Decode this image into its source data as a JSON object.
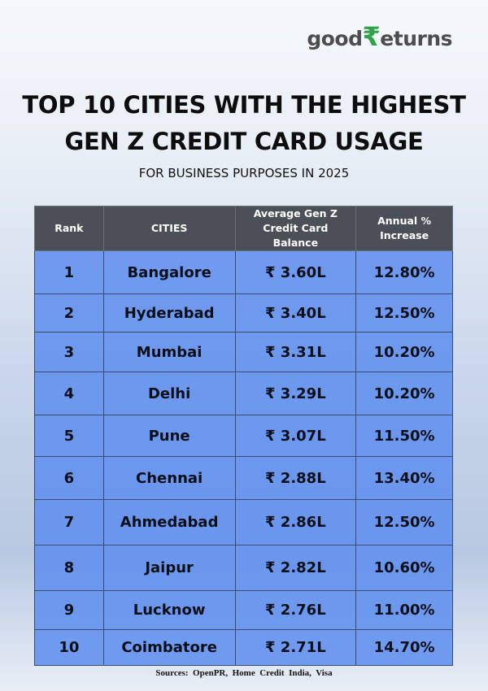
{
  "logo": {
    "part1": "good",
    "symbol": "₹",
    "part2": "eturns"
  },
  "header": {
    "title_line1": "TOP 10 CITIES WITH THE HIGHEST",
    "title_line2": "GEN Z CREDIT CARD USAGE",
    "subtitle": "FOR BUSINESS PURPOSES IN 2025"
  },
  "table": {
    "columns": [
      "Rank",
      "CITIES",
      "Average Gen Z Credit Card Balance",
      "Annual % Increase"
    ],
    "rows": [
      [
        "1",
        "Bangalore",
        "₹ 3.60L",
        "12.80%"
      ],
      [
        "2",
        "Hyderabad",
        "₹ 3.40L",
        "12.50%"
      ],
      [
        "3",
        "Mumbai",
        "₹ 3.31L",
        "10.20%"
      ],
      [
        "4",
        "Delhi",
        "₹ 3.29L",
        "10.20%"
      ],
      [
        "5",
        "Pune",
        "₹ 3.07L",
        "11.50%"
      ],
      [
        "6",
        "Chennai",
        "₹ 2.88L",
        "13.40%"
      ],
      [
        "7",
        "Ahmedabad",
        "₹ 2.86L",
        "12.50%"
      ],
      [
        "8",
        "Jaipur",
        "₹ 2.82L",
        "10.60%"
      ],
      [
        "9",
        "Lucknow",
        "₹ 2.76L",
        "11.00%"
      ],
      [
        "10",
        "Coimbatore",
        "₹ 2.71L",
        "14.70%"
      ]
    ]
  },
  "footer": {
    "source": "Sources:  OpenPR,  Home  Credit  India,  Visa"
  }
}
